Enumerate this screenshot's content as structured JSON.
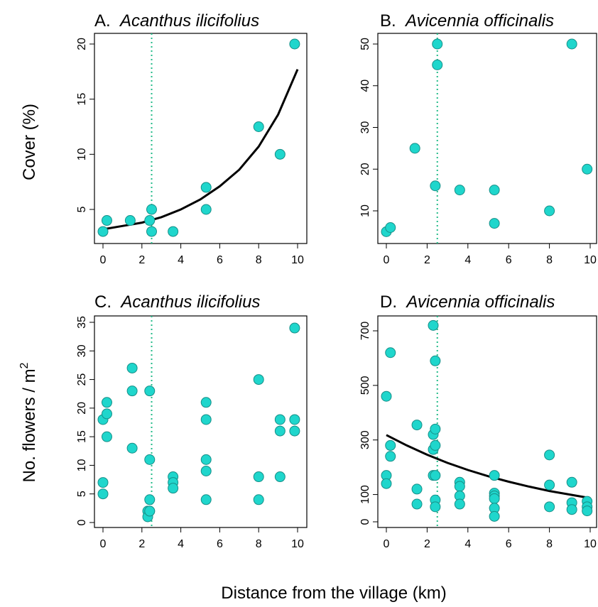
{
  "figure": {
    "xlabel": "Distance from the village (km)",
    "ylabel_top": "Cover (%)",
    "ylabel_bottom": "No. flowers / m",
    "ylabel_bottom_sup": "2"
  },
  "colors": {
    "point_fill": "#1fd6cc",
    "point_stroke": "#178f88",
    "threshold_line": "#22bb88",
    "fit_line": "#000000"
  },
  "chart_data": [
    {
      "type": "scatter",
      "panel_letter": "A.",
      "species": "Acanthus ilicifolius",
      "ylabel": "Cover (%)",
      "xlim": [
        0,
        10
      ],
      "ylim": [
        2.5,
        20.5
      ],
      "xticks": [
        0,
        2,
        4,
        6,
        8,
        10
      ],
      "yticks": [
        5,
        10,
        15,
        20
      ],
      "threshold_x": 2.5,
      "x": [
        0,
        0.2,
        1.4,
        2.4,
        2.5,
        2.5,
        3.6,
        5.3,
        5.3,
        8.0,
        9.1,
        9.85
      ],
      "y": [
        3,
        4,
        4,
        4,
        5,
        3,
        3,
        7,
        5,
        12.5,
        10,
        20
      ],
      "fit": {
        "x": [
          0,
          1,
          2,
          3,
          4,
          5,
          6,
          7,
          8,
          9,
          10
        ],
        "y": [
          3.2,
          3.5,
          3.8,
          4.3,
          5.0,
          5.9,
          7.1,
          8.6,
          10.7,
          13.6,
          17.7
        ]
      }
    },
    {
      "type": "scatter",
      "panel_letter": "B.",
      "species": "Avicennia officinalis",
      "ylabel": "",
      "xlim": [
        0,
        10
      ],
      "ylim": [
        3.5,
        51.5
      ],
      "xticks": [
        0,
        2,
        4,
        6,
        8,
        10
      ],
      "yticks": [
        10,
        20,
        30,
        40,
        50
      ],
      "threshold_x": 2.5,
      "x": [
        0,
        0.2,
        1.4,
        2.4,
        2.5,
        2.5,
        3.6,
        5.3,
        5.3,
        8.0,
        9.1,
        9.85
      ],
      "y": [
        5,
        6,
        25,
        16,
        50,
        45,
        15,
        15,
        7,
        10,
        50,
        20
      ]
    },
    {
      "type": "scatter",
      "panel_letter": "C.",
      "species": "Acanthus ilicifolius",
      "ylabel": "No. flowers / m2",
      "xlim": [
        0,
        10
      ],
      "ylim": [
        0,
        35
      ],
      "xticks": [
        0,
        2,
        4,
        6,
        8,
        10
      ],
      "yticks": [
        0,
        5,
        10,
        15,
        20,
        25,
        30,
        35
      ],
      "threshold_x": 2.5,
      "x": [
        0,
        0,
        0,
        0.2,
        0.2,
        0.2,
        1.5,
        1.5,
        1.5,
        2.3,
        2.3,
        2.4,
        2.4,
        2.4,
        2.4,
        2.4,
        3.6,
        3.6,
        3.6,
        5.3,
        5.3,
        5.3,
        5.3,
        5.3,
        8.0,
        8.0,
        8.0,
        9.1,
        9.1,
        9.1,
        9.85,
        9.85,
        9.85
      ],
      "y": [
        18,
        7,
        5,
        21,
        19,
        15,
        27,
        23,
        13,
        2,
        1,
        23,
        11,
        4,
        2,
        2,
        8,
        7,
        6,
        21,
        18,
        11,
        9,
        4,
        25,
        8,
        4,
        18,
        16,
        8,
        34,
        18,
        16
      ]
    },
    {
      "type": "scatter",
      "panel_letter": "D.",
      "species": "Avicennia officinalis",
      "ylabel": "",
      "xlim": [
        0,
        10
      ],
      "ylim": [
        0,
        720
      ],
      "xticks": [
        0,
        2,
        4,
        6,
        8,
        10
      ],
      "yticks": [
        0,
        100,
        300,
        500,
        700
      ],
      "threshold_x": 2.5,
      "x": [
        0,
        0,
        0,
        0.2,
        0.2,
        0.2,
        1.5,
        1.5,
        1.5,
        2.3,
        2.3,
        2.3,
        2.3,
        2.4,
        2.4,
        2.4,
        2.4,
        2.4,
        2.4,
        3.6,
        3.6,
        3.6,
        3.6,
        5.3,
        5.3,
        5.3,
        5.3,
        5.3,
        5.3,
        8.0,
        8.0,
        8.0,
        9.1,
        9.1,
        9.1,
        9.85,
        9.85,
        9.85
      ],
      "y": [
        460,
        170,
        140,
        620,
        280,
        240,
        355,
        120,
        65,
        720,
        320,
        265,
        170,
        590,
        340,
        280,
        170,
        80,
        55,
        145,
        130,
        95,
        65,
        170,
        105,
        95,
        85,
        50,
        20,
        245,
        135,
        55,
        145,
        70,
        45,
        75,
        55,
        40
      ],
      "fit": {
        "x": [
          0,
          1,
          2,
          3,
          4,
          5,
          6,
          7,
          8,
          9,
          10
        ],
        "y": [
          318,
          280,
          246,
          216,
          190,
          167,
          147,
          129,
          113,
          100,
          87
        ]
      }
    }
  ]
}
